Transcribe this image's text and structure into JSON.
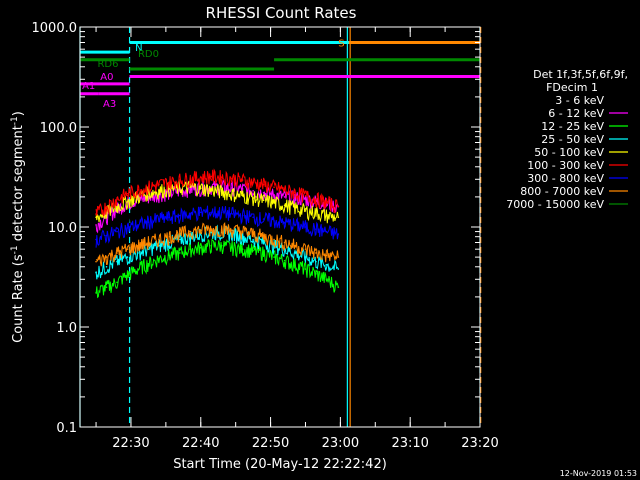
{
  "chart_data": {
    "type": "line",
    "title": "RHESSI Count Rates",
    "xlabel": "Start Time (20-May-12 22:22:42)",
    "ylabel_main": "Count Rate (s",
    "ylabel_sup1": "-1",
    "ylabel_mid": " detector segment",
    "ylabel_sup2": "-1",
    "ylabel_end": ")",
    "y_scale": "log",
    "ylim": [
      0.1,
      1000
    ],
    "xlim_minutes_after_22_20": [
      2.7,
      60.0
    ],
    "y_ticks": [
      {
        "value": 1000,
        "label": "1000.0"
      },
      {
        "value": 100,
        "label": "100.0"
      },
      {
        "value": 10,
        "label": "10.0"
      },
      {
        "value": 1,
        "label": "1.0"
      },
      {
        "value": 0.1,
        "label": "0.1"
      }
    ],
    "x_ticks": [
      {
        "minute": 10,
        "label": "22:30"
      },
      {
        "minute": 20,
        "label": "22:40"
      },
      {
        "minute": 30,
        "label": "22:50"
      },
      {
        "minute": 40,
        "label": "23:00"
      },
      {
        "minute": 50,
        "label": "23:10"
      },
      {
        "minute": 60,
        "label": "23:20"
      }
    ],
    "legend": {
      "placement": "right",
      "header1": "Det 1f,3f,5f,6f,9f,",
      "header2": "FDecim 1"
    },
    "time_grid_minutes": [
      5,
      10,
      15,
      20,
      25,
      30,
      35,
      40,
      45,
      50,
      55,
      60
    ],
    "series": [
      {
        "name": "3 - 6 keV",
        "color": "#000000",
        "values": [
          11.0,
          11.5,
          11.0,
          12.0,
          12.0,
          12.5,
          13.0,
          13.0,
          13.5,
          14.5,
          14.0,
          14.5,
          15.0,
          15.5,
          15.0,
          14.5,
          14.0,
          13.5,
          13.0,
          12.5,
          12.0,
          11.0,
          10.5,
          9.5
        ]
      },
      {
        "name": "6 - 12 keV",
        "color": "#ff00ff",
        "values": [
          10.5,
          12.5,
          15.0,
          17.5,
          19.0,
          20.0,
          21.0,
          22.0,
          23.0,
          24.0,
          24.5,
          25.0,
          25.0,
          24.5,
          24.0,
          23.0,
          22.0,
          21.0,
          20.0,
          19.5,
          19.0,
          18.0,
          17.0,
          16.0
        ]
      },
      {
        "name": "12 - 25 keV",
        "color": "#00ff00",
        "values": [
          2.2,
          2.5,
          2.8,
          3.3,
          3.8,
          4.3,
          4.8,
          5.2,
          5.5,
          6.0,
          6.2,
          6.5,
          6.5,
          6.2,
          6.0,
          5.8,
          5.5,
          5.0,
          4.6,
          4.2,
          3.8,
          3.4,
          3.0,
          2.5
        ]
      },
      {
        "name": "25 - 50 keV",
        "color": "#00ffff",
        "values": [
          3.5,
          4.0,
          4.5,
          5.0,
          5.5,
          6.0,
          6.5,
          7.0,
          7.5,
          8.0,
          8.5,
          8.8,
          8.8,
          8.5,
          8.0,
          7.5,
          7.0,
          6.5,
          6.0,
          5.5,
          5.0,
          4.5,
          4.2,
          3.8
        ]
      },
      {
        "name": "50 - 100 keV",
        "color": "#ffff00",
        "values": [
          12.5,
          14.0,
          16.0,
          18.0,
          20.0,
          22.0,
          23.0,
          24.0,
          24.5,
          25.0,
          24.5,
          23.5,
          22.5,
          21.5,
          20.5,
          19.5,
          18.5,
          17.5,
          16.5,
          15.5,
          14.5,
          14.0,
          13.0,
          12.5
        ]
      },
      {
        "name": "100 - 300 keV",
        "color": "#ff0000",
        "values": [
          13.5,
          16.0,
          19.0,
          21.5,
          23.5,
          25.0,
          26.5,
          28.0,
          29.5,
          30.5,
          31.5,
          32.0,
          31.5,
          30.5,
          29.5,
          28.0,
          26.5,
          25.0,
          23.5,
          22.0,
          20.5,
          19.0,
          17.5,
          16.0
        ]
      },
      {
        "name": "300 - 800 keV",
        "color": "#0000ff",
        "values": [
          7.5,
          8.2,
          9.0,
          9.8,
          10.5,
          11.2,
          12.0,
          12.5,
          13.0,
          13.5,
          14.0,
          14.0,
          14.0,
          13.5,
          13.0,
          12.5,
          12.0,
          11.5,
          11.0,
          10.5,
          10.0,
          9.5,
          9.0,
          8.5
        ]
      },
      {
        "name": "800 - 7000 keV",
        "color": "#ff8800",
        "values": [
          4.5,
          5.0,
          5.5,
          6.0,
          6.5,
          7.0,
          7.5,
          8.0,
          8.5,
          9.0,
          9.3,
          9.5,
          9.5,
          9.3,
          9.0,
          8.5,
          8.0,
          7.5,
          7.0,
          6.5,
          6.0,
          5.5,
          5.2,
          5.0
        ]
      },
      {
        "name": "7000 - 15000 keV",
        "color": "#008800",
        "values": []
      }
    ],
    "series_x_minutes": [
      5.0,
      6.5,
      8.0,
      9.5,
      11.0,
      12.5,
      14.0,
      15.5,
      17.0,
      18.5,
      20.0,
      21.5,
      23.0,
      24.5,
      26.0,
      27.5,
      29.0,
      30.5,
      32.0,
      33.5,
      35.0,
      36.5,
      38.0,
      39.7
    ],
    "markers": [
      {
        "label": "N",
        "color": "#00ffff",
        "segments": [
          [
            2.7,
            9.8,
            560
          ],
          [
            9.8,
            60.0,
            700
          ]
        ],
        "label_at": 10.6
      },
      {
        "label": "RD0",
        "color": "#008800",
        "segments": [
          [
            2.7,
            9.8,
            470
          ],
          [
            9.8,
            30.5,
            380
          ],
          [
            30.5,
            60.0,
            470
          ]
        ],
        "label_at": 11.0
      },
      {
        "label": "RD6",
        "color": "#008800",
        "segments": [],
        "label_at": 5.2
      },
      {
        "label": "A0",
        "color": "#ff00ff",
        "segments": [
          [
            2.7,
            9.8,
            270
          ],
          [
            9.8,
            60.0,
            320
          ]
        ],
        "label_at": 5.6
      },
      {
        "label": "A1",
        "color": "#ff00ff",
        "segments": [
          [
            2.7,
            5.3,
            215
          ]
        ],
        "label_at": 3.0
      },
      {
        "label": "A3",
        "color": "#ff00ff",
        "segments": [
          [
            5.3,
            9.8,
            215
          ]
        ],
        "label_at": 6.0
      },
      {
        "label": "S",
        "color": "#ff8800",
        "segments": [
          [
            41.2,
            60.0,
            700
          ]
        ],
        "label_at": 39.7
      }
    ],
    "vertical_lines": [
      {
        "minute": 2.7,
        "color": "#00ffff",
        "dashed": false
      },
      {
        "minute": 9.8,
        "color": "#00ffff",
        "dashed": true
      },
      {
        "minute": 41.0,
        "color": "#00ffff",
        "dashed": false
      },
      {
        "minute": 41.4,
        "color": "#ff8800",
        "dashed": false
      },
      {
        "minute": 60.0,
        "color": "#00ffff",
        "dashed": true
      },
      {
        "minute": 60.1,
        "color": "#ff8800",
        "dashed": true
      }
    ]
  },
  "footer": {
    "timestamp": "12-Nov-2019 01:53"
  }
}
